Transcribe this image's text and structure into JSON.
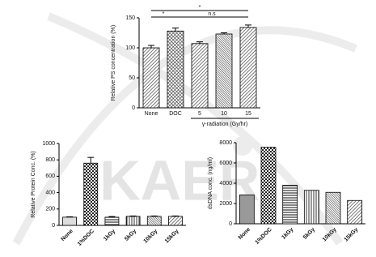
{
  "watermark": "KAERI",
  "chart_data": [
    {
      "type": "bar",
      "y_label": "Relative PS concentration (%)",
      "x_label": "γ-radiation (Gy/hr)",
      "categories": [
        "None",
        "DOC",
        "5",
        "10",
        "15"
      ],
      "values": [
        100,
        128,
        107,
        123,
        134
      ],
      "errors": [
        4,
        5,
        3,
        2,
        4
      ],
      "ylim": [
        0,
        150
      ],
      "yticks": [
        0,
        50,
        100,
        150
      ],
      "annotations": [
        "*",
        "*",
        "n.s"
      ]
    },
    {
      "type": "bar",
      "y_label": "Relative Protein Conc. (%)",
      "categories": [
        "None",
        "1%DOC",
        "1kGy",
        "5kGy",
        "10kGy",
        "15kGy"
      ],
      "values": [
        100,
        760,
        100,
        110,
        110,
        110
      ],
      "errors": [
        5,
        70,
        8,
        5,
        5,
        5
      ],
      "ylim": [
        0,
        1000
      ],
      "yticks": [
        0,
        200,
        400,
        600,
        800,
        1000
      ]
    },
    {
      "type": "bar",
      "y_label": "dsDNA conc. (ng/ml)",
      "categories": [
        "None",
        "1%DOC",
        "1kGy",
        "5kGy",
        "10kGy",
        "15kGy"
      ],
      "values": [
        2850,
        7550,
        3800,
        3300,
        3100,
        2300
      ],
      "ylim": [
        0,
        8000
      ],
      "yticks": [
        0,
        2000,
        4000,
        6000,
        8000
      ]
    }
  ]
}
